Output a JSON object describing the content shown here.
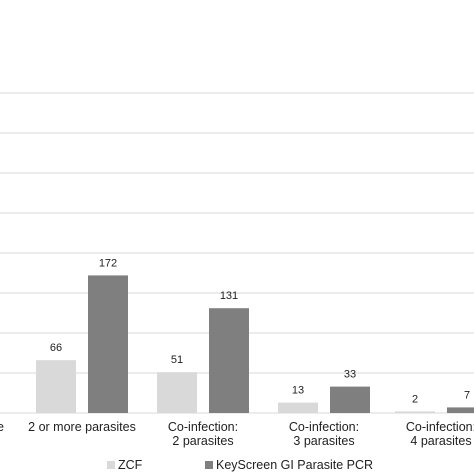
{
  "chart_data": {
    "type": "bar",
    "categories_visible_label_fragment": "e",
    "categories": [
      [
        "2 or more parasites"
      ],
      [
        "Co-infection:",
        "2 parasites"
      ],
      [
        "Co-infection:",
        "3 parasites"
      ],
      [
        "Co-infection:",
        "4 parasites"
      ]
    ],
    "series": [
      {
        "name": "ZCF",
        "values": [
          66,
          51,
          13,
          2
        ],
        "color": "#d9d9d9"
      },
      {
        "name": "KeyScreen GI Parasite PCR",
        "values": [
          172,
          131,
          33,
          7
        ],
        "color": "#7f7f7f"
      }
    ],
    "ylim": [
      0,
      400
    ],
    "grid": true,
    "legend_position": "bottom"
  }
}
